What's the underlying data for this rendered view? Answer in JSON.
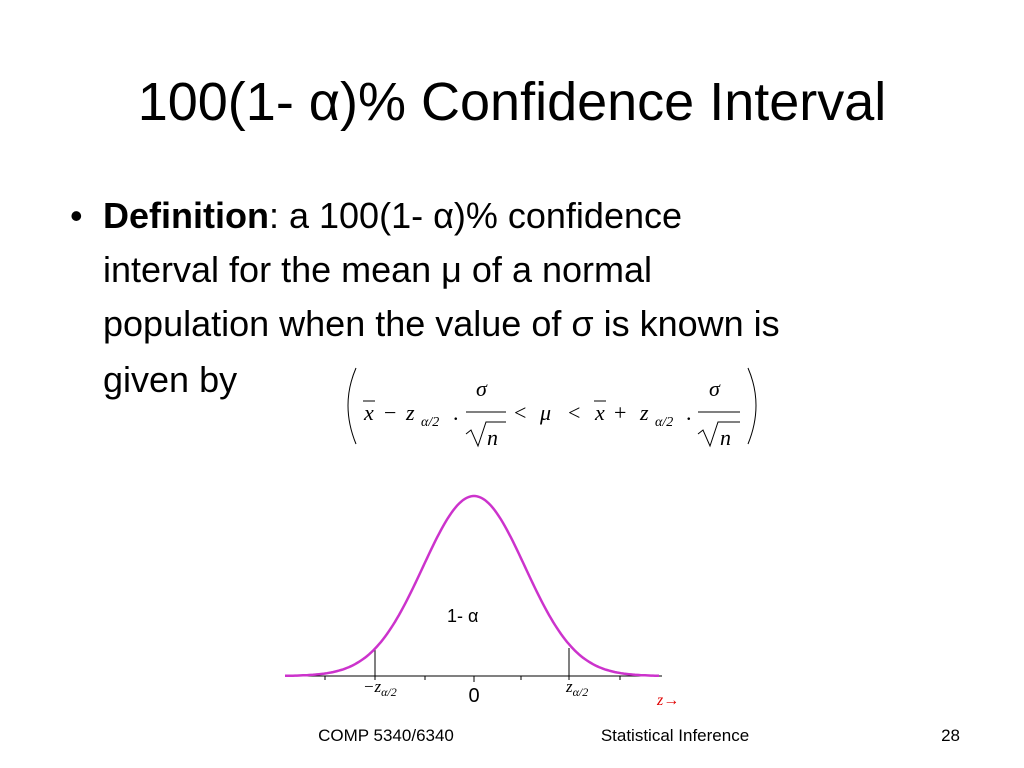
{
  "title": "100(1- α)% Confidence Interval",
  "bullet": {
    "term": "Definition",
    "lines": [
      ": a 100(1- α)% confidence",
      "interval for the mean μ of a normal",
      "population when the value of σ is known is",
      "given by"
    ]
  },
  "formula": [
    "x",
    "−",
    "z",
    "α/2",
    ".",
    "σ",
    "n",
    "<",
    "μ",
    "<",
    "x",
    "+",
    "z",
    "α/2",
    ".",
    "σ",
    "n"
  ],
  "diagram": {
    "center_label": "1- α",
    "lower": "−z",
    "lower_sub": "α/2",
    "zero": "0",
    "upper": "z",
    "upper_sub": "α/2",
    "axis_label": "z→"
  },
  "footer": {
    "left": "COMP 5340/6340",
    "center": "Statistical Inference",
    "page": "28"
  }
}
